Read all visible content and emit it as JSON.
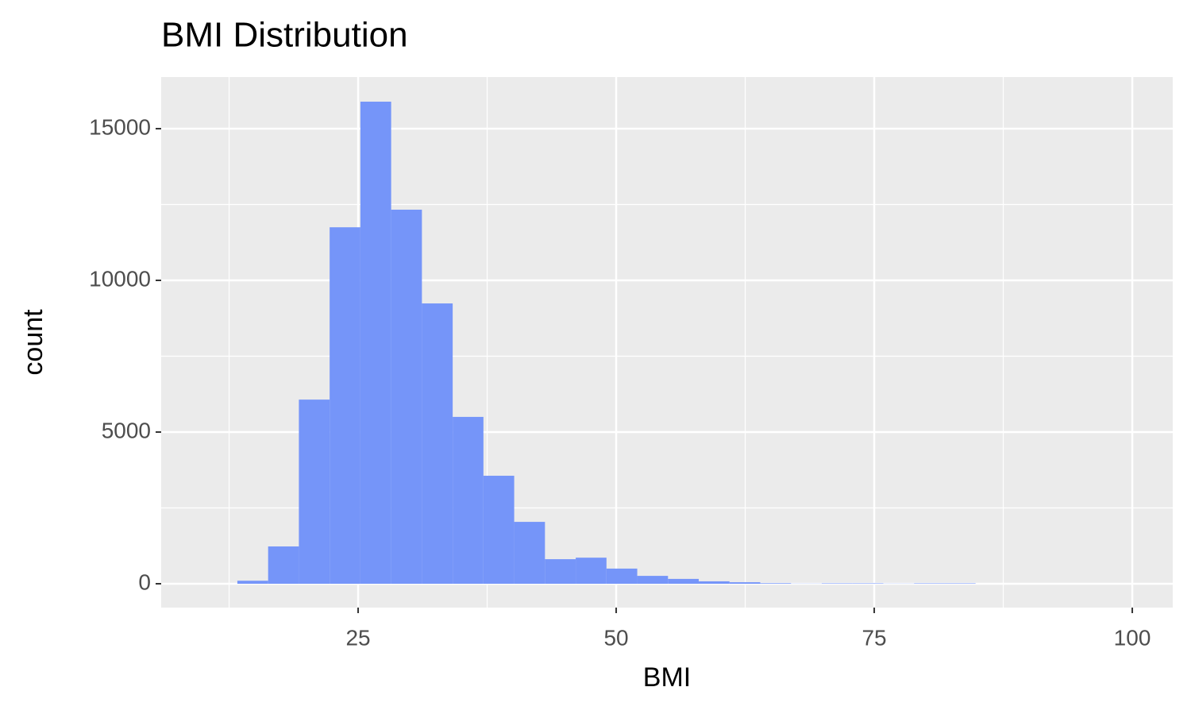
{
  "chart_data": {
    "type": "histogram",
    "title": "BMI Distribution",
    "x_label": "BMI",
    "y_label": "count",
    "color": "#7293f9",
    "bins": [
      13.3,
      16.28,
      19.26,
      22.24,
      25.22,
      28.2,
      31.18,
      34.16,
      37.14,
      40.12,
      43.1,
      46.08,
      49.06,
      52.04,
      55.02,
      58.0,
      60.98,
      63.96,
      66.94,
      69.92,
      72.9,
      75.88,
      78.86,
      81.84,
      84.82,
      87.8,
      90.78,
      93.76,
      96.74,
      99.72,
      102.7
    ],
    "counts": [
      100,
      1230,
      6070,
      11750,
      15890,
      12330,
      9240,
      5500,
      3560,
      2040,
      810,
      860,
      500,
      260,
      160,
      80,
      50,
      20,
      5,
      15,
      15,
      5,
      15,
      15,
      0,
      0,
      0,
      0,
      0,
      0
    ],
    "xlim": [
      5.92,
      103.92
    ],
    "xticks": [
      25,
      50,
      75,
      100
    ],
    "x_minor_breaks": [
      12.5,
      37.5,
      62.5,
      87.5
    ],
    "ylim": [
      -785,
      16702
    ],
    "yticks": [
      0,
      5000,
      10000,
      15000
    ],
    "y_minor_breaks": [
      2500,
      7500,
      12500
    ],
    "grid": true
  }
}
